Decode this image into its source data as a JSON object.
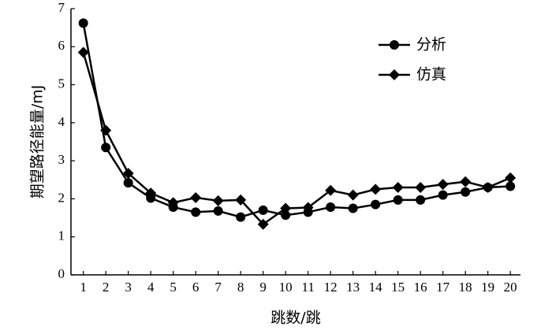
{
  "chart_data": {
    "type": "line",
    "x_label": "跳数/跳",
    "y_label": "期望路径能量/mJ",
    "x": [
      1,
      2,
      3,
      4,
      5,
      6,
      7,
      8,
      9,
      10,
      11,
      12,
      13,
      14,
      15,
      16,
      17,
      18,
      19,
      20
    ],
    "series": [
      {
        "name": "分析",
        "color": "#000000",
        "marker": "circle",
        "values": [
          6.62,
          3.35,
          2.42,
          2.02,
          1.78,
          1.65,
          1.68,
          1.52,
          1.7,
          1.57,
          1.65,
          1.78,
          1.75,
          1.85,
          1.97,
          1.97,
          2.1,
          2.18,
          2.3,
          2.33
        ]
      },
      {
        "name": "仿真",
        "color": "#000000",
        "marker": "diamond",
        "values": [
          5.85,
          3.8,
          2.67,
          2.15,
          1.9,
          2.03,
          1.95,
          1.97,
          1.33,
          1.75,
          1.77,
          2.22,
          2.1,
          2.25,
          2.3,
          2.3,
          2.38,
          2.45,
          2.3,
          2.55
        ]
      }
    ],
    "xlim": [
      0.45,
      20.45
    ],
    "xticks": [
      1,
      2,
      3,
      4,
      5,
      6,
      7,
      8,
      9,
      10,
      11,
      12,
      13,
      14,
      15,
      16,
      17,
      18,
      19,
      20
    ],
    "ylim": [
      0,
      7
    ],
    "yticks": [
      0,
      1,
      2,
      3,
      4,
      5,
      6,
      7
    ],
    "legend": "upper-right"
  }
}
